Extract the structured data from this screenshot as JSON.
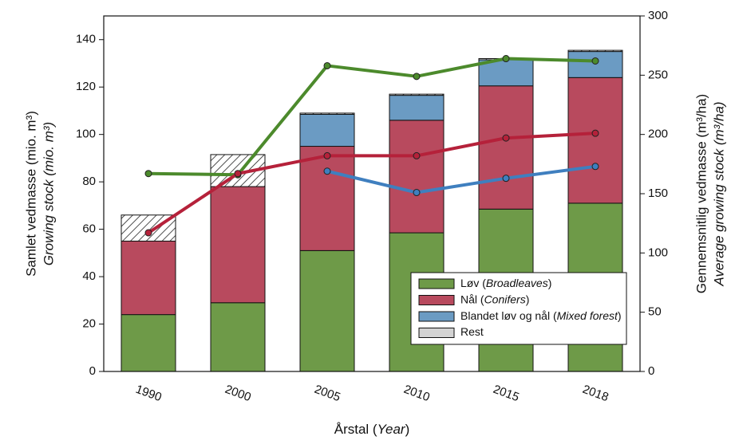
{
  "chart_data": {
    "type": "stacked_bar_line",
    "categories": [
      "1990",
      "2000",
      "2005",
      "2010",
      "2015",
      "2018"
    ],
    "series": [
      {
        "name": "Løv (Broadleaves)",
        "color": "#6e9a48",
        "values": [
          24,
          29,
          51,
          58.5,
          68.5,
          71
        ]
      },
      {
        "name": "Nål (Conifers)",
        "color": "#b84a5e",
        "values": [
          31,
          49,
          44,
          47.5,
          52,
          53
        ]
      },
      {
        "name": "Blandet løv og nål (Mixed forest)",
        "color": "#6b9bc3",
        "values": [
          null,
          null,
          13.5,
          10.5,
          11,
          11
        ]
      },
      {
        "name": "Rest",
        "color": "#d3d3d3",
        "hatch": true,
        "values": [
          11,
          13.5,
          0.5,
          0.5,
          0.5,
          0.5
        ]
      }
    ],
    "lines": [
      {
        "color": "#4c8a2c",
        "axis": "y2",
        "values": [
          167,
          166,
          258,
          249,
          264,
          262
        ]
      },
      {
        "color": "#b5213a",
        "axis": "y2",
        "values": [
          117,
          167,
          182,
          182,
          197,
          201
        ]
      },
      {
        "color": "#3f7fbf",
        "axis": "y2",
        "values": [
          null,
          null,
          169,
          151,
          163,
          173
        ]
      }
    ],
    "ylim": [
      0,
      150
    ],
    "yticks": [
      0,
      20,
      40,
      60,
      80,
      100,
      120,
      140
    ],
    "y2lim": [
      0,
      300
    ],
    "y2ticks": [
      0,
      50,
      100,
      150,
      200,
      250,
      300
    ],
    "y_label": [
      "Samlet vedmasse (mio. m³)",
      "Growing stock (mio. m³)"
    ],
    "y2_label": [
      "Gennemsnitlig vedmasse (m³/ha)",
      "Average growing stock (m³/ha)"
    ],
    "x_label": "Årstal (Year)",
    "legend": "lower right"
  }
}
